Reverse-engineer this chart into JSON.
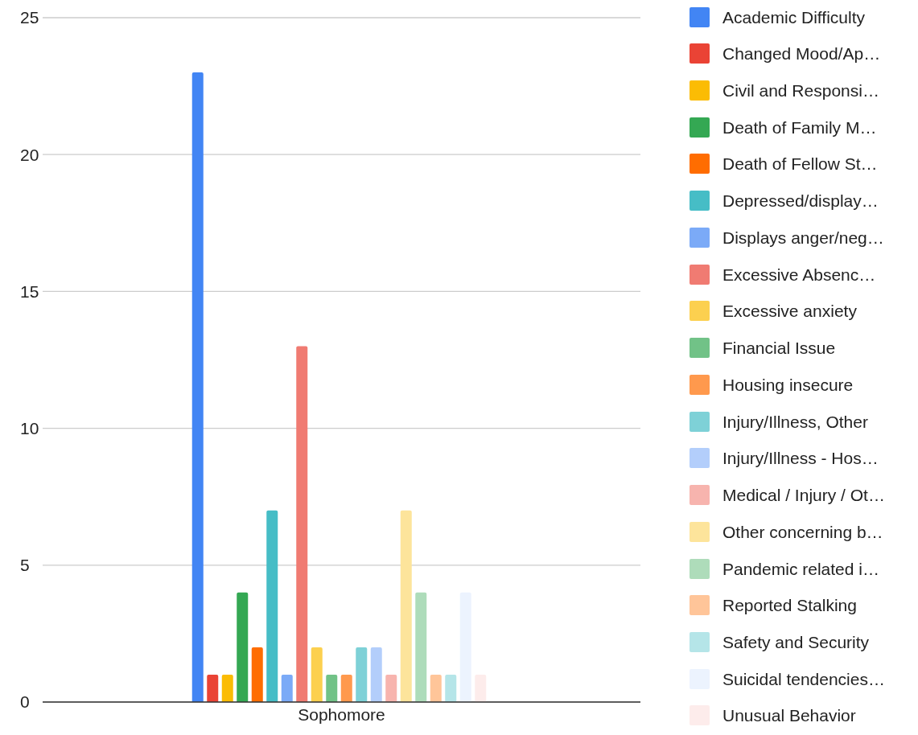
{
  "chart_data": {
    "type": "bar",
    "categories": [
      "Sophomore"
    ],
    "series": [
      {
        "name": "Academic Difficulty",
        "color": "#4285f4",
        "values": [
          23
        ]
      },
      {
        "name": "Changed Mood/Ap…",
        "color": "#ea4335",
        "values": [
          1
        ]
      },
      {
        "name": "Civil and Responsi…",
        "color": "#fbbc04",
        "values": [
          1
        ]
      },
      {
        "name": "Death of Family M…",
        "color": "#34a853",
        "values": [
          4
        ]
      },
      {
        "name": "Death of Fellow St…",
        "color": "#ff6d01",
        "values": [
          2
        ]
      },
      {
        "name": "Depressed/display…",
        "color": "#46bdc6",
        "values": [
          7
        ]
      },
      {
        "name": "Displays anger/neg…",
        "color": "#7baaf7",
        "values": [
          1
        ]
      },
      {
        "name": "Excessive Absenc…",
        "color": "#f07b72",
        "values": [
          13
        ]
      },
      {
        "name": "Excessive anxiety",
        "color": "#fcd04f",
        "values": [
          2
        ]
      },
      {
        "name": "Financial Issue",
        "color": "#71c287",
        "values": [
          1
        ]
      },
      {
        "name": "Housing insecure",
        "color": "#ff994d",
        "values": [
          1
        ]
      },
      {
        "name": "Injury/Illness, Other",
        "color": "#7ed1d7",
        "values": [
          2
        ]
      },
      {
        "name": "Injury/Illness - Hos…",
        "color": "#b3cefb",
        "values": [
          2
        ]
      },
      {
        "name": "Medical / Injury / Ot…",
        "color": "#f7b4ae",
        "values": [
          1
        ]
      },
      {
        "name": "Other concerning b…",
        "color": "#fde49b",
        "values": [
          7
        ]
      },
      {
        "name": "Pandemic related i…",
        "color": "#aedcba",
        "values": [
          4
        ]
      },
      {
        "name": "Reported Stalking",
        "color": "#ffc599",
        "values": [
          1
        ]
      },
      {
        "name": "Safety and Security",
        "color": "#b5e5e8",
        "values": [
          1
        ]
      },
      {
        "name": "Suicidal tendencies…",
        "color": "#ecf3fe",
        "values": [
          4
        ]
      },
      {
        "name": "Unusual Behavior",
        "color": "#fdeceb",
        "values": [
          1
        ]
      }
    ],
    "ylim": [
      0,
      25
    ],
    "yticks": [
      0,
      5,
      10,
      15,
      20,
      25
    ],
    "grid": "y",
    "legend": "right"
  }
}
